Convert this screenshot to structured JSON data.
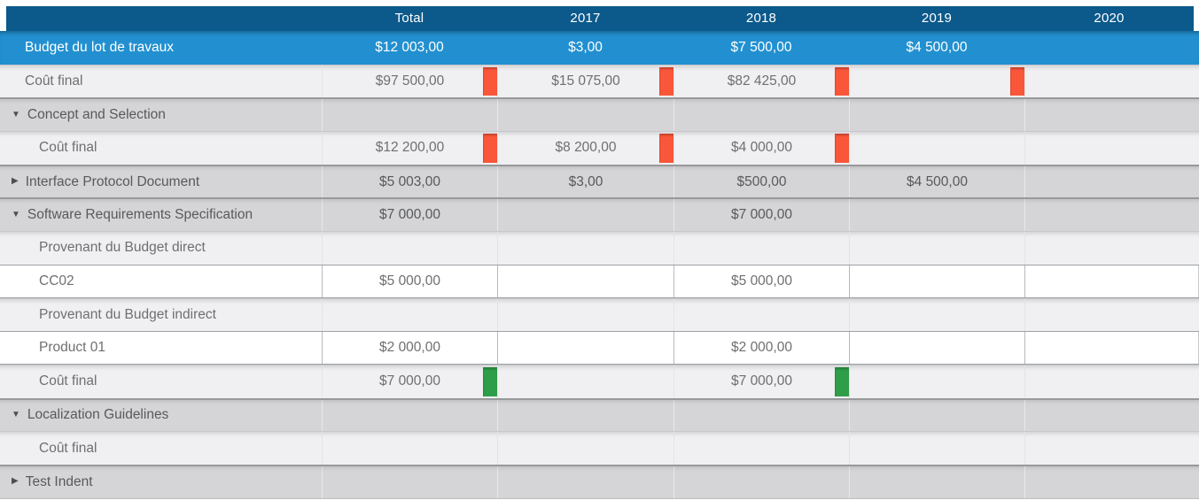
{
  "header": {
    "columns": [
      "",
      "Total",
      "2017",
      "2018",
      "2019",
      "2020"
    ]
  },
  "colors": {
    "header_bg": "#0c598b",
    "budget_row_bg": "#2290d0",
    "group_row_bg": "#d5d5d7",
    "light_row_bg": "#f0f0f2",
    "white_row_bg": "#ffffff",
    "over_budget_bar": "#f9563a",
    "ok_budget_bar": "#2f9e48",
    "header_text": "#ffffff",
    "body_text": "#6e6f71"
  },
  "rows": [
    {
      "type": "budget",
      "indent": 0,
      "label": "Budget du lot de travaux",
      "values": [
        "$12 003,00",
        "$3,00",
        "$7 500,00",
        "$4 500,00",
        ""
      ]
    },
    {
      "type": "light",
      "indent": 0,
      "label": "Coût final",
      "values": [
        "$97 500,00",
        "$15 075,00",
        "$82 425,00",
        "",
        ""
      ],
      "bars": {
        "color": "orange",
        "cols": [
          0,
          1,
          2,
          3
        ]
      }
    },
    {
      "type": "group",
      "arrow": "expanded",
      "label": "Concept and Selection",
      "values": [
        "",
        "",
        "",
        "",
        ""
      ]
    },
    {
      "type": "light",
      "indent": 1,
      "label": "Coût final",
      "values": [
        "$12 200,00",
        "$8 200,00",
        "$4 000,00",
        "",
        ""
      ],
      "bars": {
        "color": "orange",
        "cols": [
          0,
          1,
          2
        ]
      }
    },
    {
      "type": "group",
      "arrow": "collapsed",
      "label": "Interface Protocol Document",
      "values": [
        "$5 003,00",
        "$3,00",
        "$500,00",
        "$4 500,00",
        ""
      ]
    },
    {
      "type": "group",
      "arrow": "expanded",
      "label": "Software Requirements Specification",
      "values": [
        "$7 000,00",
        "",
        "$7 000,00",
        "",
        ""
      ]
    },
    {
      "type": "light",
      "indent": 1,
      "label": "Provenant du Budget direct",
      "values": [
        "",
        "",
        "",
        "",
        ""
      ]
    },
    {
      "type": "white",
      "indent": 1,
      "label": "CC02",
      "values": [
        "$5 000,00",
        "",
        "$5 000,00",
        "",
        ""
      ]
    },
    {
      "type": "light",
      "indent": 1,
      "label": "Provenant du Budget indirect",
      "values": [
        "",
        "",
        "",
        "",
        ""
      ]
    },
    {
      "type": "white",
      "indent": 1,
      "label": "Product 01",
      "values": [
        "$2 000,00",
        "",
        "$2 000,00",
        "",
        ""
      ]
    },
    {
      "type": "light",
      "indent": 1,
      "label": "Coût final",
      "values": [
        "$7 000,00",
        "",
        "$7 000,00",
        "",
        ""
      ],
      "bars": {
        "color": "green",
        "cols": [
          0,
          2
        ]
      }
    },
    {
      "type": "group",
      "arrow": "expanded",
      "label": "Localization Guidelines",
      "values": [
        "",
        "",
        "",
        "",
        ""
      ]
    },
    {
      "type": "light",
      "indent": 1,
      "label": "Coût final",
      "values": [
        "",
        "",
        "",
        "",
        ""
      ]
    },
    {
      "type": "group",
      "arrow": "collapsed",
      "label": "Test Indent",
      "values": [
        "",
        "",
        "",
        "",
        ""
      ]
    }
  ]
}
